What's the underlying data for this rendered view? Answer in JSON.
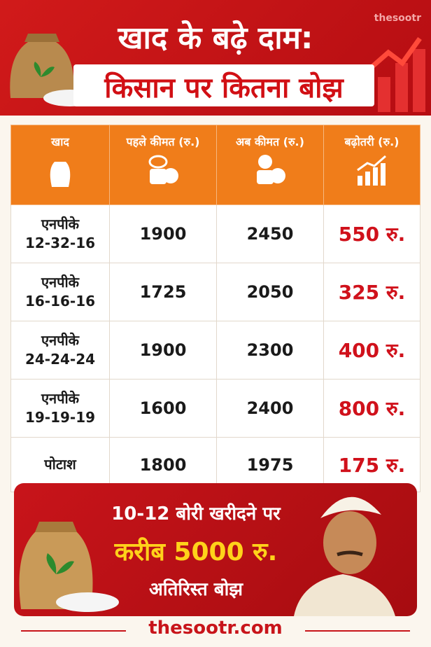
{
  "header": {
    "title_line1": "खाद के बढ़े दाम:",
    "title_line2": "किसान पर कितना बोझ",
    "watermark": "thesootr"
  },
  "table": {
    "headers": [
      "खाद",
      "पहले कीमत (रु.)",
      "अब कीमत (रु.)",
      "बढ़ोतरी (रु.)"
    ],
    "rows": [
      [
        [
          "एनपीके",
          "12-32-16"
        ],
        "1900",
        "2450",
        "550 रु."
      ],
      [
        [
          "एनपीके",
          "16-16-16"
        ],
        "1725",
        "2050",
        "325 रु."
      ],
      [
        [
          "एनपीके",
          "24-24-24"
        ],
        "1900",
        "2300",
        "400 रु."
      ],
      [
        [
          "एनपीके",
          "19-19-19"
        ],
        "1600",
        "2400",
        "800 रु."
      ],
      [
        [
          "पोटाश"
        ],
        "1800",
        "1975",
        "175 रु."
      ]
    ]
  },
  "banner": {
    "line1": "10-12 बोरी खरीदने पर",
    "line2": "करीब 5000 रु.",
    "line3": "अतिरिस्त बोझ"
  },
  "footer": {
    "site": "thesootr.com"
  }
}
